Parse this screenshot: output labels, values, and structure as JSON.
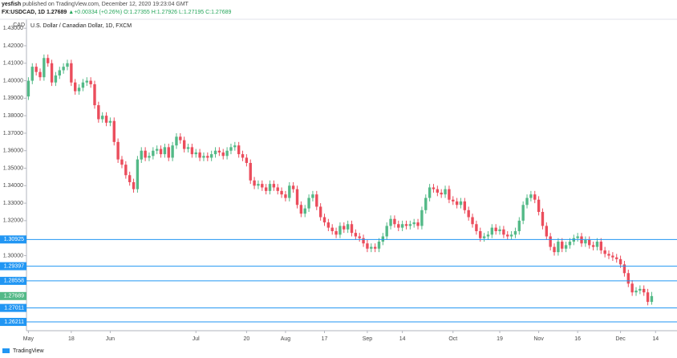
{
  "header": {
    "author": "yesfish",
    "published": "published on TradingView.com, December 12, 2020 19:23:04 GMT",
    "symbol": "FX:USDCAD, 1D",
    "price": "1.27689",
    "change": "▲+0.00334 (+0.26%)",
    "ohlc": "O:1.27355 H:1.27926 L:1.27195 C:1.27689"
  },
  "footer": {
    "brand": "TradingView"
  },
  "chart_data": {
    "type": "candlestick",
    "title": "U.S. Dollar / Canadian Dollar, 1D, FXCM",
    "y_unit": "CAD",
    "up_color": "#53b987",
    "down_color": "#eb4d5c",
    "level_color": "#2196f3",
    "last_color": "#53b987",
    "ylim": [
      1.258,
      1.4333
    ],
    "yticks": [
      {
        "value": 1.43,
        "label": "1.43000"
      },
      {
        "value": 1.42,
        "label": "1.42000"
      },
      {
        "value": 1.41,
        "label": "1.41000"
      },
      {
        "value": 1.4,
        "label": "1.40000"
      },
      {
        "value": 1.39,
        "label": "1.39000"
      },
      {
        "value": 1.38,
        "label": "1.38000"
      },
      {
        "value": 1.37,
        "label": "1.37000"
      },
      {
        "value": 1.36,
        "label": "1.36000"
      },
      {
        "value": 1.35,
        "label": "1.35000"
      },
      {
        "value": 1.34,
        "label": "1.34000"
      },
      {
        "value": 1.33,
        "label": "1.33000"
      },
      {
        "value": 1.32,
        "label": "1.32000"
      },
      {
        "value": 1.3,
        "label": "1.30000"
      }
    ],
    "levels": [
      {
        "value": 1.30925,
        "label": "1.30925"
      },
      {
        "value": 1.29397,
        "label": "1.29397"
      },
      {
        "value": 1.28558,
        "label": "1.28558"
      },
      {
        "value": 1.27011,
        "label": "1.27011"
      },
      {
        "value": 1.26211,
        "label": "1.26211"
      }
    ],
    "last_price": {
      "value": 1.27689,
      "label": "1.27689"
    },
    "categories": [
      "May",
      null,
      null,
      null,
      null,
      null,
      null,
      null,
      null,
      null,
      null,
      "18",
      null,
      null,
      null,
      null,
      null,
      null,
      null,
      null,
      null,
      "Jun",
      null,
      null,
      null,
      null,
      null,
      null,
      null,
      null,
      null,
      null,
      null,
      null,
      null,
      null,
      null,
      null,
      null,
      null,
      null,
      null,
      null,
      "Jul",
      null,
      null,
      null,
      null,
      null,
      null,
      null,
      null,
      null,
      null,
      null,
      null,
      "20",
      null,
      null,
      null,
      null,
      null,
      null,
      null,
      null,
      null,
      "Aug",
      null,
      null,
      null,
      null,
      null,
      null,
      null,
      null,
      null,
      "17",
      null,
      null,
      null,
      null,
      null,
      null,
      null,
      null,
      null,
      null,
      "Sep",
      null,
      null,
      null,
      null,
      null,
      null,
      null,
      null,
      "14",
      null,
      null,
      null,
      null,
      null,
      null,
      null,
      null,
      null,
      null,
      null,
      null,
      "Oct",
      null,
      null,
      null,
      null,
      null,
      null,
      null,
      null,
      null,
      null,
      null,
      "19",
      null,
      null,
      null,
      null,
      null,
      null,
      null,
      null,
      null,
      "Nov",
      null,
      null,
      null,
      null,
      null,
      null,
      null,
      null,
      null,
      "16",
      null,
      null,
      null,
      null,
      null,
      null,
      null,
      null,
      null,
      null,
      "Dec",
      null,
      null,
      null,
      null,
      null,
      null,
      null,
      null,
      "14",
      null,
      null,
      null,
      null,
      null
    ],
    "open": [
      1.391,
      1.4,
      1.408,
      1.405,
      1.402,
      1.413,
      1.41,
      1.399,
      1.403,
      1.406,
      1.408,
      1.41,
      1.399,
      1.394,
      1.396,
      1.399,
      1.4,
      1.398,
      1.386,
      1.378,
      1.38,
      1.376,
      1.377,
      1.365,
      1.355,
      1.352,
      1.346,
      1.342,
      1.338,
      1.355,
      1.36,
      1.356,
      1.357,
      1.36,
      1.361,
      1.358,
      1.362,
      1.356,
      1.363,
      1.368,
      1.366,
      1.361,
      1.362,
      1.358,
      1.359,
      1.356,
      1.357,
      1.356,
      1.358,
      1.36,
      1.359,
      1.357,
      1.36,
      1.362,
      1.363,
      1.358,
      1.356,
      1.353,
      1.343,
      1.34,
      1.341,
      1.339,
      1.337,
      1.341,
      1.339,
      1.337,
      1.335,
      1.333,
      1.34,
      1.338,
      1.329,
      1.324,
      1.327,
      1.333,
      1.335,
      1.328,
      1.322,
      1.319,
      1.316,
      1.314,
      1.312,
      1.317,
      1.315,
      1.318,
      1.313,
      1.311,
      1.31,
      1.307,
      1.304,
      1.305,
      1.304,
      1.308,
      1.311,
      1.317,
      1.321,
      1.318,
      1.316,
      1.318,
      1.317,
      1.318,
      1.319,
      1.317,
      1.326,
      1.333,
      1.339,
      1.338,
      1.336,
      1.335,
      1.338,
      1.332,
      1.331,
      1.329,
      1.331,
      1.326,
      1.322,
      1.318,
      1.314,
      1.31,
      1.311,
      1.312,
      1.316,
      1.314,
      1.315,
      1.312,
      1.311,
      1.312,
      1.314,
      1.32,
      1.329,
      1.333,
      1.335,
      1.332,
      1.325,
      1.317,
      1.311,
      1.305,
      1.302,
      1.308,
      1.304,
      1.306,
      1.308,
      1.31,
      1.311,
      1.307,
      1.309,
      1.306,
      1.305,
      1.308,
      1.303,
      1.301,
      1.3,
      1.299,
      1.298,
      1.295,
      1.29,
      1.284,
      1.279,
      1.28,
      1.281,
      1.279,
      1.27355,
      null,
      null,
      null,
      null,
      null,
      null
    ],
    "high": [
      1.402,
      1.41,
      1.41,
      1.407,
      1.415,
      1.415,
      1.412,
      1.405,
      1.408,
      1.41,
      1.412,
      1.412,
      1.401,
      1.398,
      1.401,
      1.402,
      1.402,
      1.4,
      1.388,
      1.382,
      1.382,
      1.379,
      1.379,
      1.367,
      1.357,
      1.354,
      1.348,
      1.344,
      1.357,
      1.362,
      1.362,
      1.359,
      1.362,
      1.363,
      1.363,
      1.364,
      1.364,
      1.365,
      1.37,
      1.37,
      1.368,
      1.364,
      1.364,
      1.361,
      1.361,
      1.359,
      1.359,
      1.36,
      1.362,
      1.362,
      1.361,
      1.362,
      1.364,
      1.365,
      1.365,
      1.36,
      1.358,
      1.355,
      1.345,
      1.343,
      1.343,
      1.341,
      1.343,
      1.343,
      1.341,
      1.339,
      1.337,
      1.342,
      1.342,
      1.34,
      1.331,
      1.329,
      1.335,
      1.337,
      1.337,
      1.33,
      1.324,
      1.321,
      1.318,
      1.316,
      1.319,
      1.319,
      1.32,
      1.32,
      1.315,
      1.313,
      1.312,
      1.309,
      1.307,
      1.307,
      1.31,
      1.313,
      1.319,
      1.323,
      1.323,
      1.32,
      1.32,
      1.32,
      1.32,
      1.321,
      1.321,
      1.328,
      1.335,
      1.341,
      1.341,
      1.34,
      1.338,
      1.34,
      1.34,
      1.334,
      1.333,
      1.333,
      1.333,
      1.328,
      1.324,
      1.32,
      1.316,
      1.313,
      1.314,
      1.318,
      1.318,
      1.317,
      1.317,
      1.314,
      1.314,
      1.316,
      1.322,
      1.331,
      1.335,
      1.337,
      1.337,
      1.334,
      1.327,
      1.319,
      1.313,
      1.307,
      1.31,
      1.31,
      1.308,
      1.31,
      1.312,
      1.313,
      1.313,
      1.311,
      1.311,
      1.308,
      1.31,
      1.31,
      1.305,
      1.303,
      1.302,
      1.301,
      1.3,
      1.297,
      1.292,
      1.286,
      1.282,
      1.283,
      1.283,
      1.281,
      1.27926,
      null,
      null,
      null,
      null,
      null,
      null
    ],
    "low": [
      1.389,
      1.398,
      1.403,
      1.4,
      1.4,
      1.408,
      1.397,
      1.397,
      1.401,
      1.404,
      1.406,
      1.397,
      1.392,
      1.392,
      1.394,
      1.397,
      1.396,
      1.384,
      1.376,
      1.376,
      1.374,
      1.374,
      1.363,
      1.353,
      1.35,
      1.344,
      1.34,
      1.336,
      1.336,
      1.353,
      1.354,
      1.354,
      1.355,
      1.358,
      1.356,
      1.356,
      1.354,
      1.354,
      1.361,
      1.364,
      1.359,
      1.359,
      1.356,
      1.356,
      1.354,
      1.354,
      1.354,
      1.354,
      1.356,
      1.357,
      1.355,
      1.355,
      1.358,
      1.36,
      1.356,
      1.354,
      1.351,
      1.341,
      1.338,
      1.338,
      1.337,
      1.335,
      1.335,
      1.337,
      1.335,
      1.333,
      1.331,
      1.331,
      1.336,
      1.327,
      1.322,
      1.322,
      1.325,
      1.331,
      1.326,
      1.32,
      1.317,
      1.314,
      1.312,
      1.31,
      1.31,
      1.313,
      1.313,
      1.311,
      1.309,
      1.308,
      1.305,
      1.302,
      1.302,
      1.302,
      1.302,
      1.306,
      1.309,
      1.315,
      1.316,
      1.314,
      1.314,
      1.315,
      1.315,
      1.316,
      1.315,
      1.315,
      1.324,
      1.331,
      1.336,
      1.334,
      1.333,
      1.333,
      1.33,
      1.329,
      1.327,
      1.327,
      1.324,
      1.32,
      1.316,
      1.312,
      1.308,
      1.308,
      1.309,
      1.31,
      1.312,
      1.312,
      1.31,
      1.309,
      1.309,
      1.31,
      1.312,
      1.318,
      1.327,
      1.331,
      1.33,
      1.323,
      1.315,
      1.309,
      1.303,
      1.3,
      1.3,
      1.302,
      1.302,
      1.304,
      1.306,
      1.308,
      1.305,
      1.305,
      1.304,
      1.303,
      1.303,
      1.301,
      1.299,
      1.298,
      1.297,
      1.296,
      1.293,
      1.288,
      1.282,
      1.277,
      1.277,
      1.278,
      1.277,
      1.2716,
      1.27195,
      null,
      null,
      null,
      null,
      null,
      null
    ],
    "close": [
      1.4,
      1.408,
      1.405,
      1.402,
      1.413,
      1.41,
      1.399,
      1.403,
      1.406,
      1.408,
      1.41,
      1.399,
      1.394,
      1.396,
      1.399,
      1.4,
      1.398,
      1.386,
      1.378,
      1.38,
      1.376,
      1.377,
      1.365,
      1.355,
      1.352,
      1.346,
      1.342,
      1.338,
      1.355,
      1.36,
      1.356,
      1.357,
      1.36,
      1.361,
      1.358,
      1.362,
      1.356,
      1.363,
      1.368,
      1.366,
      1.361,
      1.362,
      1.358,
      1.359,
      1.356,
      1.357,
      1.356,
      1.358,
      1.36,
      1.359,
      1.357,
      1.36,
      1.362,
      1.363,
      1.358,
      1.356,
      1.353,
      1.343,
      1.34,
      1.341,
      1.339,
      1.337,
      1.341,
      1.339,
      1.337,
      1.335,
      1.333,
      1.34,
      1.338,
      1.329,
      1.324,
      1.327,
      1.333,
      1.335,
      1.328,
      1.322,
      1.319,
      1.316,
      1.314,
      1.312,
      1.317,
      1.315,
      1.318,
      1.313,
      1.311,
      1.31,
      1.307,
      1.304,
      1.305,
      1.304,
      1.308,
      1.311,
      1.317,
      1.321,
      1.318,
      1.316,
      1.318,
      1.317,
      1.318,
      1.319,
      1.317,
      1.326,
      1.333,
      1.339,
      1.338,
      1.336,
      1.335,
      1.338,
      1.332,
      1.331,
      1.329,
      1.331,
      1.326,
      1.322,
      1.318,
      1.314,
      1.31,
      1.311,
      1.312,
      1.316,
      1.314,
      1.315,
      1.312,
      1.311,
      1.312,
      1.314,
      1.32,
      1.329,
      1.333,
      1.335,
      1.332,
      1.325,
      1.317,
      1.311,
      1.305,
      1.302,
      1.308,
      1.304,
      1.306,
      1.308,
      1.31,
      1.311,
      1.307,
      1.309,
      1.306,
      1.305,
      1.308,
      1.303,
      1.301,
      1.3,
      1.299,
      1.298,
      1.295,
      1.29,
      1.284,
      1.279,
      1.28,
      1.281,
      1.279,
      1.27355,
      1.27689,
      null,
      null,
      null,
      null,
      null,
      null
    ]
  }
}
